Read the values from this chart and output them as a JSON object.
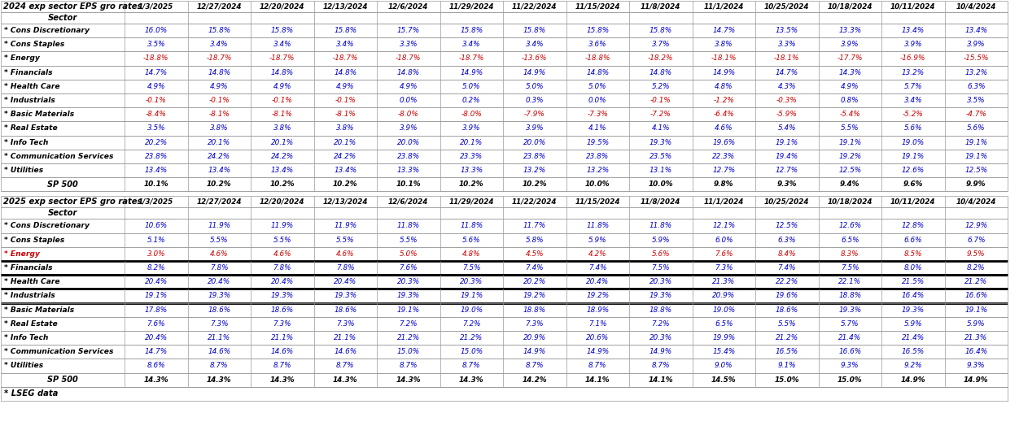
{
  "title_2024": "2024 exp sector EPS gro rates",
  "title_2025": "2025 exp sector EPS gro rates",
  "footer": "* LSEG data",
  "columns": [
    "1/3/2025",
    "12/27/2024",
    "12/20/2024",
    "12/13/2024",
    "12/6/2024",
    "11/29/2024",
    "11/22/2024",
    "11/15/2024",
    "11/8/2024",
    "11/1/2024",
    "10/25/2024",
    "10/18/2024",
    "10/11/2024",
    "10/4/2024"
  ],
  "sectors": [
    "* Cons Discretionary",
    "* Cons Staples",
    "* Energy",
    "* Financials",
    "* Health Care",
    "* Industrials",
    "* Basic Materials",
    "* Real Estate",
    "* Info Tech",
    "* Communication Services",
    "* Utilities",
    "SP 500"
  ],
  "data_2024": [
    [
      "16.0%",
      "15.8%",
      "15.8%",
      "15.8%",
      "15.7%",
      "15.8%",
      "15.8%",
      "15.8%",
      "15.8%",
      "14.7%",
      "13.5%",
      "13.3%",
      "13.4%",
      "13.4%"
    ],
    [
      "3.5%",
      "3.4%",
      "3.4%",
      "3.4%",
      "3.3%",
      "3.4%",
      "3.4%",
      "3.6%",
      "3.7%",
      "3.8%",
      "3.3%",
      "3.9%",
      "3.9%",
      "3.9%"
    ],
    [
      "-18.8%",
      "-18.7%",
      "-18.7%",
      "-18.7%",
      "-18.7%",
      "-18.7%",
      "-13.6%",
      "-18.8%",
      "-18.2%",
      "-18.1%",
      "-18.1%",
      "-17.7%",
      "-16.9%",
      "-15.5%"
    ],
    [
      "14.7%",
      "14.8%",
      "14.8%",
      "14.8%",
      "14.8%",
      "14.9%",
      "14.9%",
      "14.8%",
      "14.8%",
      "14.9%",
      "14.7%",
      "14.3%",
      "13.2%",
      "13.2%"
    ],
    [
      "4.9%",
      "4.9%",
      "4.9%",
      "4.9%",
      "4.9%",
      "5.0%",
      "5.0%",
      "5.0%",
      "5.2%",
      "4.8%",
      "4.3%",
      "4.9%",
      "5.7%",
      "6.3%"
    ],
    [
      "-0.1%",
      "-0.1%",
      "-0.1%",
      "-0.1%",
      "0.0%",
      "0.2%",
      "0.3%",
      "0.0%",
      "-0.1%",
      "-1.2%",
      "-0.3%",
      "0.8%",
      "3.4%",
      "3.5%"
    ],
    [
      "-8.4%",
      "-8.1%",
      "-8.1%",
      "-8.1%",
      "-8.0%",
      "-8.0%",
      "-7.9%",
      "-7.3%",
      "-7.2%",
      "-6.4%",
      "-5.9%",
      "-5.4%",
      "-5.2%",
      "-4.7%"
    ],
    [
      "3.5%",
      "3.8%",
      "3.8%",
      "3.8%",
      "3.9%",
      "3.9%",
      "3.9%",
      "4.1%",
      "4.1%",
      "4.6%",
      "5.4%",
      "5.5%",
      "5.6%",
      "5.6%"
    ],
    [
      "20.2%",
      "20.1%",
      "20.1%",
      "20.1%",
      "20.0%",
      "20.1%",
      "20.0%",
      "19.5%",
      "19.3%",
      "19.6%",
      "19.1%",
      "19.1%",
      "19.0%",
      "19.1%"
    ],
    [
      "23.8%",
      "24.2%",
      "24.2%",
      "24.2%",
      "23.8%",
      "23.3%",
      "23.8%",
      "23.8%",
      "23.5%",
      "22.3%",
      "19.4%",
      "19.2%",
      "19.1%",
      "19.1%"
    ],
    [
      "13.4%",
      "13.4%",
      "13.4%",
      "13.4%",
      "13.3%",
      "13.3%",
      "13.2%",
      "13.2%",
      "13.1%",
      "12.7%",
      "12.7%",
      "12.5%",
      "12.6%",
      "12.5%"
    ],
    [
      "10.1%",
      "10.2%",
      "10.2%",
      "10.2%",
      "10.1%",
      "10.2%",
      "10.2%",
      "10.0%",
      "10.0%",
      "9.8%",
      "9.3%",
      "9.4%",
      "9.6%",
      "9.9%"
    ]
  ],
  "data_2025": [
    [
      "10.6%",
      "11.9%",
      "11.9%",
      "11.9%",
      "11.8%",
      "11.8%",
      "11.7%",
      "11.8%",
      "11.8%",
      "12.1%",
      "12.5%",
      "12.6%",
      "12.8%",
      "12.9%"
    ],
    [
      "5.1%",
      "5.5%",
      "5.5%",
      "5.5%",
      "5.5%",
      "5.6%",
      "5.8%",
      "5.9%",
      "5.9%",
      "6.0%",
      "6.3%",
      "6.5%",
      "6.6%",
      "6.7%"
    ],
    [
      "3.0%",
      "4.6%",
      "4.6%",
      "4.6%",
      "5.0%",
      "4.8%",
      "4.5%",
      "4.2%",
      "5.6%",
      "7.6%",
      "8.4%",
      "8.3%",
      "8.5%",
      "9.5%"
    ],
    [
      "8.2%",
      "7.8%",
      "7.8%",
      "7.8%",
      "7.6%",
      "7.5%",
      "7.4%",
      "7.4%",
      "7.5%",
      "7.3%",
      "7.4%",
      "7.5%",
      "8.0%",
      "8.2%"
    ],
    [
      "20.4%",
      "20.4%",
      "20.4%",
      "20.4%",
      "20.3%",
      "20.3%",
      "20.2%",
      "20.4%",
      "20.3%",
      "21.3%",
      "22.2%",
      "22.1%",
      "21.5%",
      "21.2%"
    ],
    [
      "19.1%",
      "19.3%",
      "19.3%",
      "19.3%",
      "19.3%",
      "19.1%",
      "19.2%",
      "19.2%",
      "19.3%",
      "20.9%",
      "19.6%",
      "18.8%",
      "16.4%",
      "16.6%"
    ],
    [
      "17.8%",
      "18.6%",
      "18.6%",
      "18.6%",
      "19.1%",
      "19.0%",
      "18.8%",
      "18.9%",
      "18.8%",
      "19.0%",
      "18.6%",
      "19.3%",
      "19.3%",
      "19.1%"
    ],
    [
      "7.6%",
      "7.3%",
      "7.3%",
      "7.3%",
      "7.2%",
      "7.2%",
      "7.3%",
      "7.1%",
      "7.2%",
      "6.5%",
      "5.5%",
      "5.7%",
      "5.9%",
      "5.9%"
    ],
    [
      "20.4%",
      "21.1%",
      "21.1%",
      "21.1%",
      "21.2%",
      "21.2%",
      "20.9%",
      "20.6%",
      "20.3%",
      "19.9%",
      "21.2%",
      "21.4%",
      "21.4%",
      "21.3%"
    ],
    [
      "14.7%",
      "14.6%",
      "14.6%",
      "14.6%",
      "15.0%",
      "15.0%",
      "14.9%",
      "14.9%",
      "14.9%",
      "15.4%",
      "16.5%",
      "16.6%",
      "16.5%",
      "16.4%"
    ],
    [
      "8.6%",
      "8.7%",
      "8.7%",
      "8.7%",
      "8.7%",
      "8.7%",
      "8.7%",
      "8.7%",
      "8.7%",
      "9.0%",
      "9.1%",
      "9.3%",
      "9.2%",
      "9.3%"
    ],
    [
      "14.3%",
      "14.3%",
      "14.3%",
      "14.3%",
      "14.3%",
      "14.3%",
      "14.2%",
      "14.1%",
      "14.1%",
      "14.5%",
      "15.0%",
      "15.0%",
      "14.9%",
      "14.9%"
    ]
  ],
  "thick_border_rows_2025": [
    3,
    4,
    5
  ],
  "energy_row_2025": 2,
  "sp500_row": 11,
  "pos_color": "#0000cc",
  "neg_color": "#cc0000",
  "energy_text_color": "#cc0000",
  "sp500_text_color": "#000000",
  "sector_text_color": "#000000",
  "header_text_color": "#000000",
  "grid_color": "#999999",
  "thick_lw": 2.0,
  "thin_lw": 0.5
}
